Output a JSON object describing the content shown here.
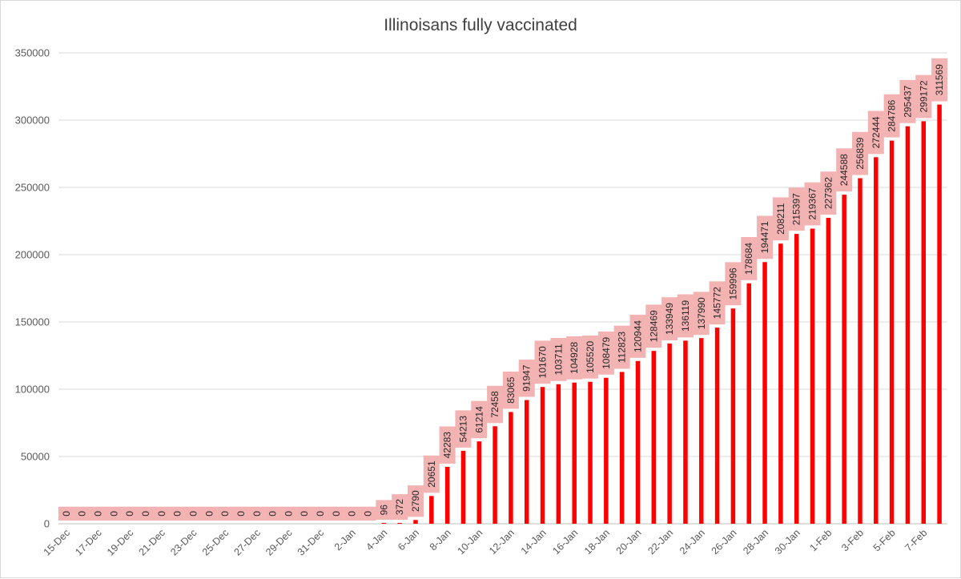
{
  "chart_data": {
    "type": "bar",
    "title": "Illinoisans fully vaccinated",
    "xlabel": "",
    "ylabel": "",
    "ylim": [
      0,
      350000
    ],
    "yticks": [
      0,
      50000,
      100000,
      150000,
      200000,
      250000,
      300000,
      350000
    ],
    "grid": true,
    "legend": "none",
    "bar_color": "#ff0000",
    "label_bg_color": "#f4b3b3",
    "categories": [
      "15-Dec",
      "16-Dec",
      "17-Dec",
      "18-Dec",
      "19-Dec",
      "20-Dec",
      "21-Dec",
      "22-Dec",
      "23-Dec",
      "24-Dec",
      "25-Dec",
      "26-Dec",
      "27-Dec",
      "28-Dec",
      "29-Dec",
      "30-Dec",
      "31-Dec",
      "1-Jan",
      "2-Jan",
      "3-Jan",
      "4-Jan",
      "5-Jan",
      "6-Jan",
      "7-Jan",
      "8-Jan",
      "9-Jan",
      "10-Jan",
      "11-Jan",
      "12-Jan",
      "13-Jan",
      "14-Jan",
      "15-Jan",
      "16-Jan",
      "17-Jan",
      "18-Jan",
      "19-Jan",
      "20-Jan",
      "21-Jan",
      "22-Jan",
      "23-Jan",
      "24-Jan",
      "25-Jan",
      "26-Jan",
      "27-Jan",
      "28-Jan",
      "29-Jan",
      "30-Jan",
      "31-Jan",
      "1-Feb",
      "2-Feb",
      "3-Feb",
      "4-Feb",
      "5-Feb",
      "6-Feb",
      "7-Feb",
      "8-Feb"
    ],
    "visible_x_labels": [
      "15-Dec",
      "17-Dec",
      "19-Dec",
      "21-Dec",
      "23-Dec",
      "25-Dec",
      "27-Dec",
      "29-Dec",
      "31-Dec",
      "2-Jan",
      "4-Jan",
      "6-Jan",
      "8-Jan",
      "10-Jan",
      "12-Jan",
      "14-Jan",
      "16-Jan",
      "18-Jan",
      "20-Jan",
      "22-Jan",
      "24-Jan",
      "26-Jan",
      "28-Jan",
      "30-Jan",
      "1-Feb",
      "3-Feb",
      "5-Feb",
      "7-Feb"
    ],
    "values": [
      0,
      0,
      0,
      0,
      0,
      0,
      0,
      0,
      0,
      0,
      0,
      0,
      0,
      0,
      0,
      0,
      0,
      0,
      0,
      0,
      96,
      372,
      2790,
      20651,
      42283,
      54213,
      61214,
      72458,
      83065,
      91947,
      101670,
      103711,
      104928,
      105520,
      108479,
      112823,
      120944,
      128469,
      133949,
      136119,
      137990,
      145772,
      159996,
      178684,
      194471,
      208211,
      215397,
      219367,
      227362,
      244588,
      256839,
      272444,
      284786,
      295437,
      299172,
      311569
    ]
  }
}
